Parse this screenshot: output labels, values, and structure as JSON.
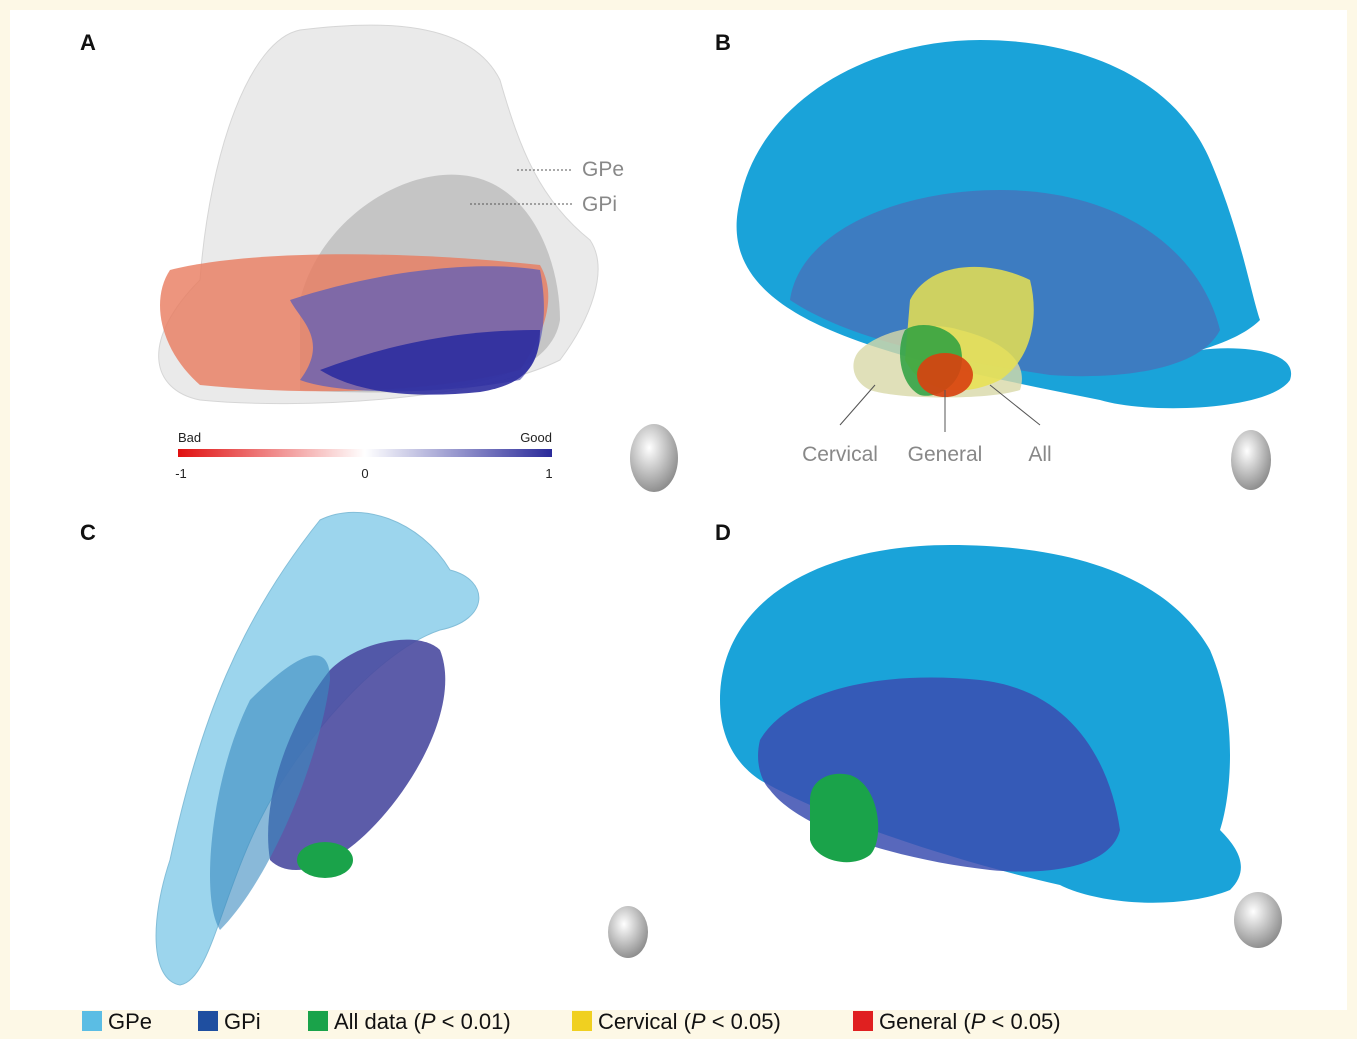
{
  "panels": [
    {
      "letter": "A",
      "labels": [
        "GPe",
        "GPi"
      ],
      "colorbar": {
        "low_label": "Bad",
        "high_label": "Good",
        "ticks": [
          -1,
          0,
          1
        ]
      }
    },
    {
      "letter": "B",
      "labels": [
        "Cervical",
        "General",
        "All"
      ]
    },
    {
      "letter": "C"
    },
    {
      "letter": "D"
    }
  ],
  "legend": [
    {
      "name": "GPe",
      "color": "#5bbde4"
    },
    {
      "name": "GPi",
      "color": "#1f4fa0"
    },
    {
      "name": "All data (",
      "italic": "P",
      "rest": " < 0.01)",
      "color": "#1aa34a"
    },
    {
      "name": "Cervical (",
      "italic": "P",
      "rest": " < 0.05)",
      "color": "#f0d020"
    },
    {
      "name": "General (",
      "italic": "P",
      "rest": " < 0.05)",
      "color": "#e02020"
    }
  ]
}
